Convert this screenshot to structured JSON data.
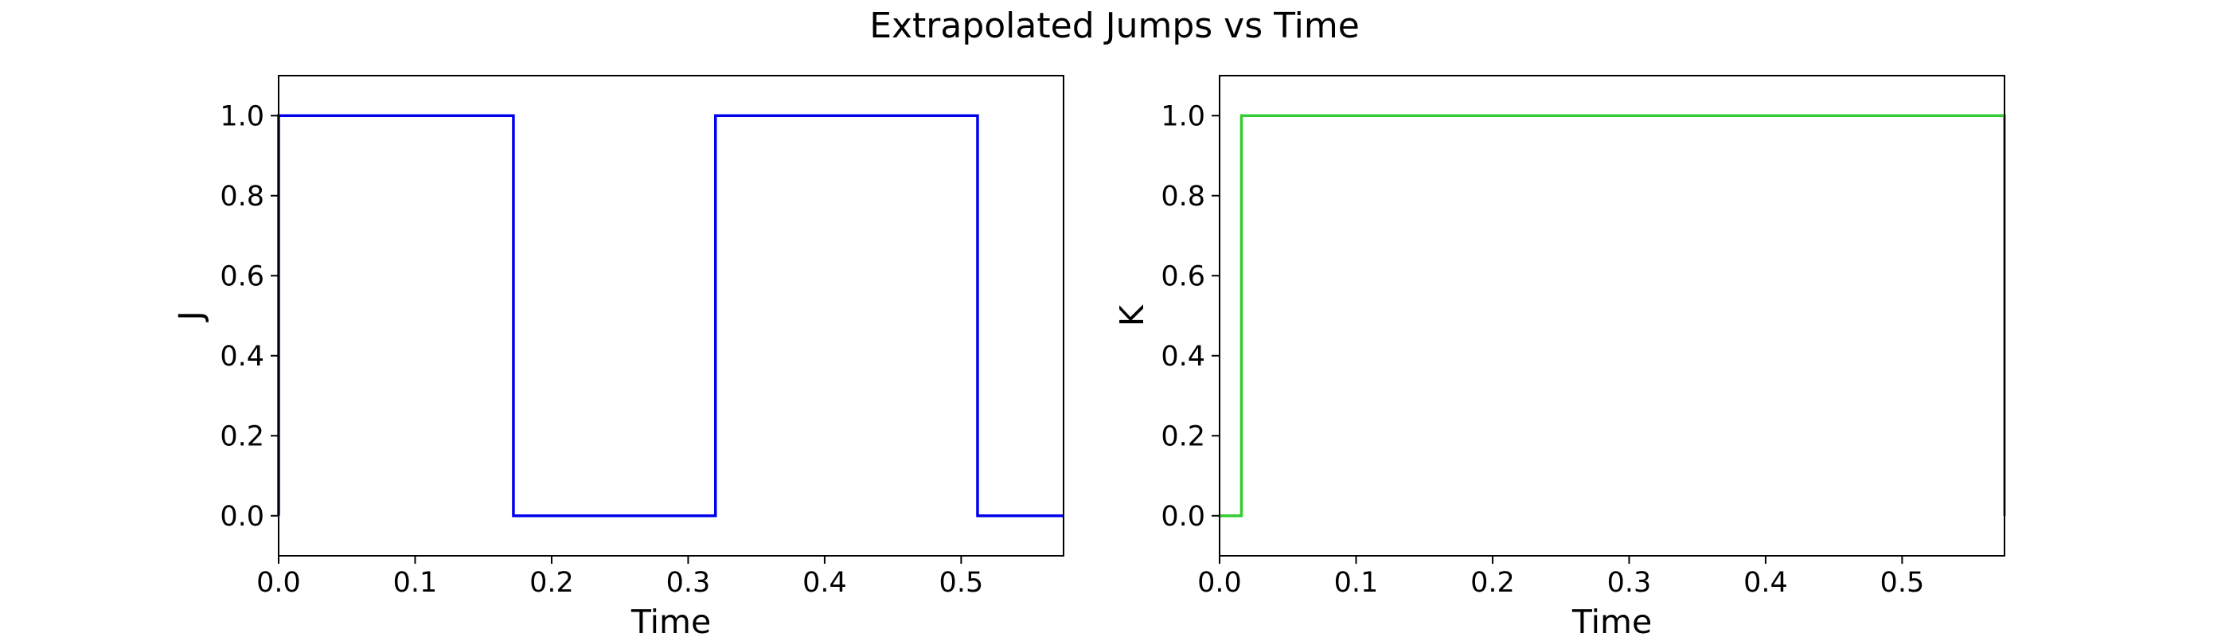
{
  "figure": {
    "title": "Extrapolated Jumps vs Time"
  },
  "chart_data": [
    {
      "type": "line",
      "step": "post",
      "xlabel": "Time",
      "ylabel": "J",
      "xlim": [
        0.0,
        0.575
      ],
      "ylim": [
        -0.1,
        1.1
      ],
      "xticks": [
        0.0,
        0.1,
        0.2,
        0.3,
        0.4,
        0.5
      ],
      "yticks": [
        0.0,
        0.2,
        0.4,
        0.6,
        0.8,
        1.0
      ],
      "xtick_labels": [
        "0.0",
        "0.1",
        "0.2",
        "0.3",
        "0.4",
        "0.5"
      ],
      "ytick_labels": [
        "0.0",
        "0.2",
        "0.4",
        "0.6",
        "0.8",
        "1.0"
      ],
      "grid": false,
      "series": [
        {
          "color": "#0000ee",
          "x": [
            0.0,
            0.0,
            0.172,
            0.172,
            0.32,
            0.32,
            0.512,
            0.512,
            0.575
          ],
          "y": [
            0,
            1,
            1,
            0,
            0,
            1,
            1,
            0,
            0
          ]
        }
      ]
    },
    {
      "type": "line",
      "step": "post",
      "xlabel": "Time",
      "ylabel": "K",
      "xlim": [
        0.0,
        0.575
      ],
      "ylim": [
        -0.1,
        1.1
      ],
      "xticks": [
        0.0,
        0.1,
        0.2,
        0.3,
        0.4,
        0.5
      ],
      "yticks": [
        0.0,
        0.2,
        0.4,
        0.6,
        0.8,
        1.0
      ],
      "xtick_labels": [
        "0.0",
        "0.1",
        "0.2",
        "0.3",
        "0.4",
        "0.5"
      ],
      "ytick_labels": [
        "0.0",
        "0.2",
        "0.4",
        "0.6",
        "0.8",
        "1.0"
      ],
      "grid": false,
      "series": [
        {
          "color": "#33cc33",
          "x": [
            0.0,
            0.016,
            0.016,
            0.575,
            0.575
          ],
          "y": [
            0,
            0,
            1,
            1,
            0
          ]
        }
      ]
    }
  ]
}
